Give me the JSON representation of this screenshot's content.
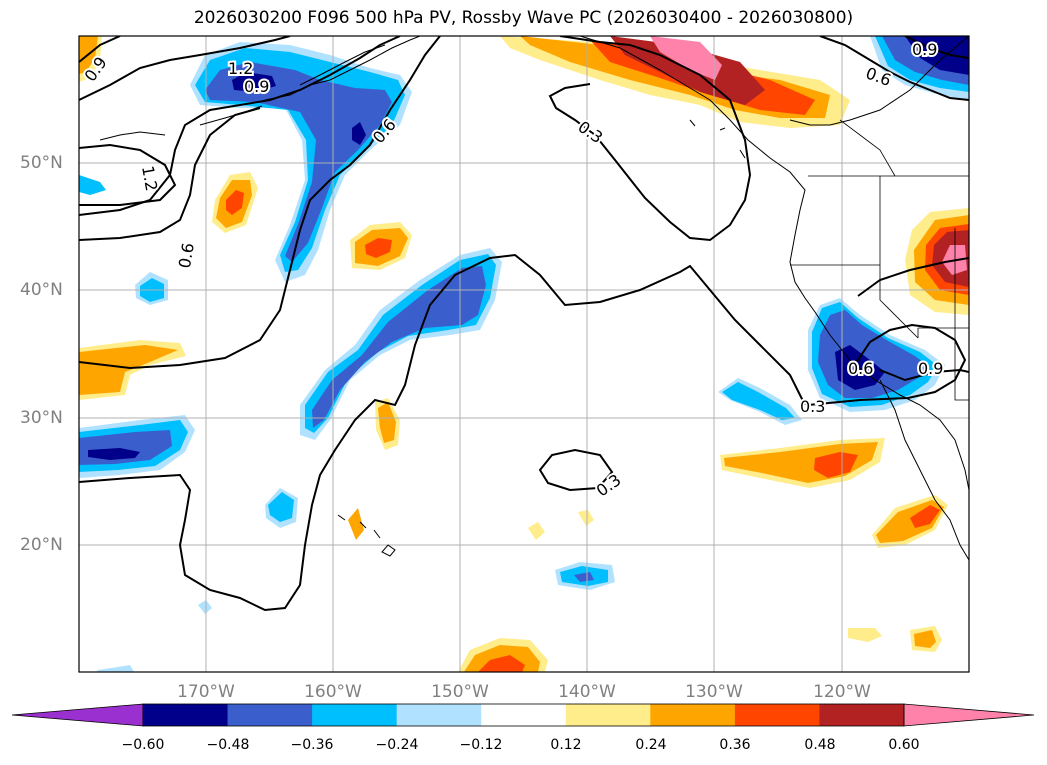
{
  "title": "2026030200 F096 500 hPa PV, Rossby Wave PC (2026030400 - 2026030800)",
  "lat_labels": [
    "50°N",
    "40°N",
    "30°N",
    "20°N"
  ],
  "lon_labels": [
    "170°W",
    "160°W",
    "150°W",
    "140°W",
    "130°W",
    "120°W"
  ],
  "contour_labels": [
    "1.2",
    "0.9",
    "0.6",
    "0.3",
    "0.3",
    "0.3",
    "0.6",
    "0.9",
    "0.9",
    "0.6",
    "1.2",
    "0.9",
    "0.6"
  ],
  "colorbar": {
    "ticks": [
      "−0.60",
      "−0.48",
      "−0.36",
      "−0.24",
      "−0.12",
      "0.12",
      "0.24",
      "0.36",
      "0.48",
      "0.60"
    ],
    "colors": [
      "#9b30d0",
      "#00008b",
      "#3a5fcd",
      "#00bfff",
      "#b0e2ff",
      "#ffffff",
      "#ffec8b",
      "#ffa500",
      "#ff4500",
      "#b22222",
      "#ff82ab"
    ]
  }
}
